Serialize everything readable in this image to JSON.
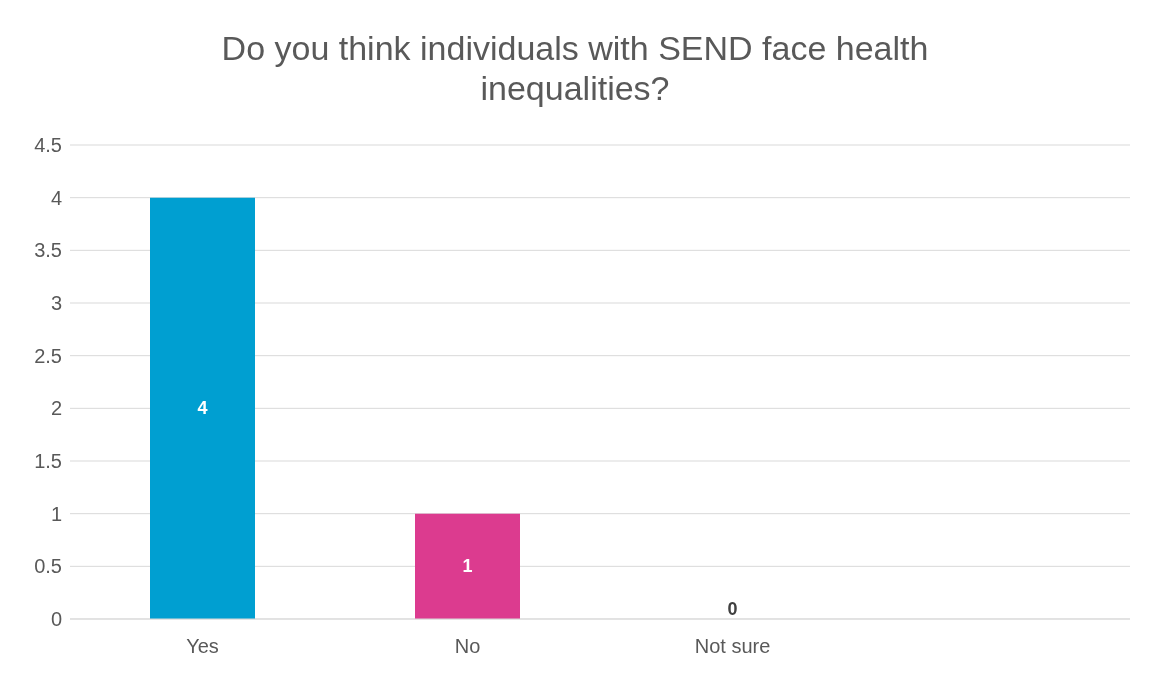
{
  "chart_data": {
    "type": "bar",
    "title": "Do you think individuals with SEND face health inequalities?",
    "categories": [
      "Yes",
      "No",
      "Not sure",
      null
    ],
    "values": [
      4,
      1,
      0,
      null
    ],
    "colors": [
      "#009fd1",
      "#dc3b8f",
      "#8c8c8c",
      "#8c8c8c"
    ],
    "ylim": [
      0,
      4.5
    ],
    "yticks": [
      0,
      0.5,
      1,
      1.5,
      2,
      2.5,
      3,
      3.5,
      4,
      4.5
    ],
    "grid": "y",
    "data_labels": true
  }
}
